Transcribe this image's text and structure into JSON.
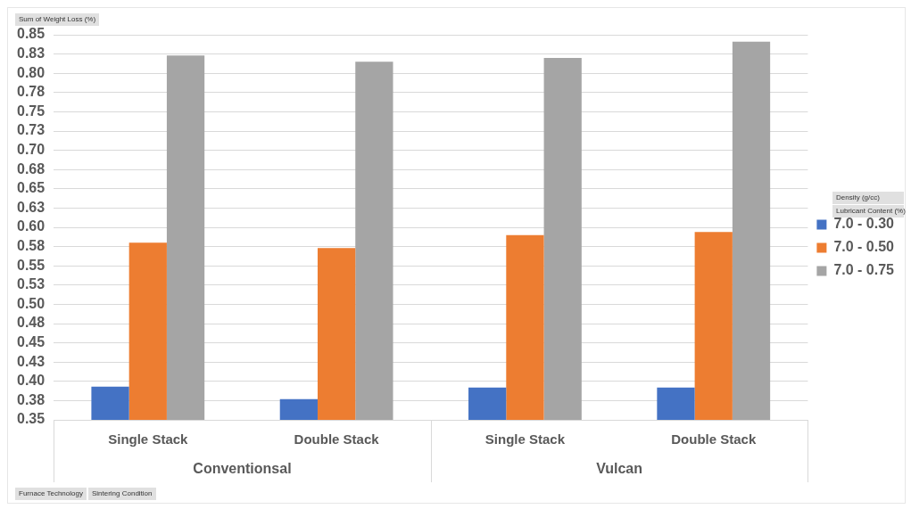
{
  "chart_data": {
    "type": "bar",
    "ylabel": "Sum of Weight Loss (%)",
    "legend_title": "Density (g/cc)",
    "categories": [
      "Single Stack",
      "Double Stack",
      "Single Stack",
      "Double Stack"
    ],
    "series": [
      {
        "name": "7.0 - 0.30",
        "color": "#4472c4",
        "values": [
          0.393,
          0.377,
          0.392,
          0.392
        ]
      },
      {
        "name": "7.0 - 0.50",
        "color": "#ed7d31",
        "values": [
          0.58,
          0.573,
          0.59,
          0.594
        ]
      },
      {
        "name": "7.0 - 0.75",
        "color": "#a5a5a5",
        "values": [
          0.823,
          0.815,
          0.82,
          0.841
        ]
      }
    ],
    "ylim": [
      0.35,
      0.85
    ],
    "yticks": [
      0.35,
      {
        "value": 0.375,
        "label": "0.38"
      },
      {
        "value": 0.4,
        "label": "0.40"
      },
      {
        "value": 0.425,
        "label": "0.43"
      },
      0.45,
      {
        "value": 0.475,
        "label": "0.48"
      },
      {
        "value": 0.5,
        "label": "0.50"
      },
      {
        "value": 0.525,
        "label": "0.53"
      },
      0.55,
      {
        "value": 0.575,
        "label": "0.58"
      },
      {
        "value": 0.6,
        "label": "0.60"
      },
      {
        "value": 0.625,
        "label": "0.63"
      },
      0.65,
      {
        "value": 0.675,
        "label": "0.68"
      },
      {
        "value": 0.7,
        "label": "0.70"
      },
      {
        "value": 0.725,
        "label": "0.73"
      },
      0.75,
      {
        "value": 0.775,
        "label": "0.78"
      },
      {
        "value": 0.8,
        "label": "0.80"
      },
      {
        "value": 0.825,
        "label": "0.83"
      },
      0.85
    ],
    "grid": "y",
    "legend": "right",
    "annotations": [
      "Conventionsal",
      "Vulcan",
      "Lubricant Content (%)",
      "Furnace Technology",
      "Sintering Condition"
    ]
  }
}
